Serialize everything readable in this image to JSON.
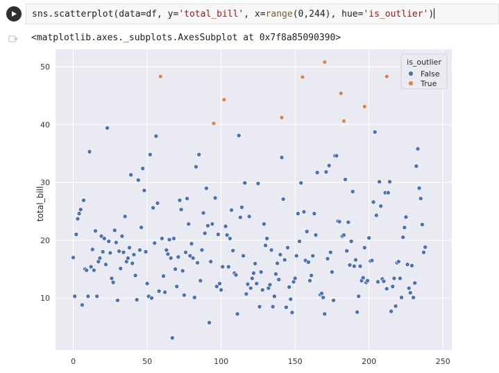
{
  "cell": {
    "code_prefix": "sns.scatterplot(data=df, y=",
    "code_y": "'total_bill'",
    "code_mid": ", x=",
    "code_range": "range",
    "code_range_args": "(0,244)",
    "code_hue_kw": ", hue=",
    "code_hue": "'is_outlier'",
    "code_suffix": ")",
    "output": "<matplotlib.axes._subplots.AxesSubplot at 0x7f8a85090390>"
  },
  "chart_data": {
    "type": "scatter",
    "xlabel": "",
    "ylabel": "total_bill",
    "xlim": [
      -12,
      256
    ],
    "ylim": [
      1,
      53
    ],
    "xticks": [
      0,
      50,
      100,
      150,
      200,
      250
    ],
    "yticks": [
      10,
      20,
      30,
      40,
      50
    ],
    "grid": true,
    "legend_position": "top-right",
    "legend_title": "is_outlier",
    "colors": {
      "False": "#4c72b0",
      "True": "#dd8452",
      "background": "#eaeaf2",
      "grid": "#ffffff"
    },
    "series": [
      {
        "name": "False",
        "color": "#4c72b0",
        "points": [
          [
            0,
            17.0
          ],
          [
            1,
            10.3
          ],
          [
            2,
            21.0
          ],
          [
            3,
            23.7
          ],
          [
            4,
            24.6
          ],
          [
            5,
            25.3
          ],
          [
            6,
            8.8
          ],
          [
            7,
            26.9
          ],
          [
            8,
            15.0
          ],
          [
            9,
            14.8
          ],
          [
            10,
            10.3
          ],
          [
            11,
            35.3
          ],
          [
            12,
            15.4
          ],
          [
            13,
            18.4
          ],
          [
            14,
            14.8
          ],
          [
            15,
            21.6
          ],
          [
            16,
            10.3
          ],
          [
            17,
            16.3
          ],
          [
            18,
            16.9
          ],
          [
            19,
            20.7
          ],
          [
            20,
            18.0
          ],
          [
            21,
            20.3
          ],
          [
            22,
            15.8
          ],
          [
            23,
            39.4
          ],
          [
            24,
            19.8
          ],
          [
            25,
            17.8
          ],
          [
            26,
            13.4
          ],
          [
            27,
            12.7
          ],
          [
            28,
            21.7
          ],
          [
            29,
            19.6
          ],
          [
            30,
            9.6
          ],
          [
            31,
            18.1
          ],
          [
            32,
            15.1
          ],
          [
            33,
            20.7
          ],
          [
            34,
            17.9
          ],
          [
            35,
            24.1
          ],
          [
            36,
            16.3
          ],
          [
            37,
            16.9
          ],
          [
            38,
            18.7
          ],
          [
            39,
            31.3
          ],
          [
            40,
            16.0
          ],
          [
            41,
            17.5
          ],
          [
            42,
            13.9
          ],
          [
            43,
            9.7
          ],
          [
            44,
            30.4
          ],
          [
            45,
            18.3
          ],
          [
            46,
            22.2
          ],
          [
            47,
            32.4
          ],
          [
            48,
            28.6
          ],
          [
            49,
            18.0
          ],
          [
            50,
            12.5
          ],
          [
            51,
            10.3
          ],
          [
            52,
            34.8
          ],
          [
            53,
            10.0
          ],
          [
            54,
            25.6
          ],
          [
            55,
            19.5
          ],
          [
            56,
            38.0
          ],
          [
            57,
            26.4
          ],
          [
            58,
            11.2
          ],
          [
            60,
            20.3
          ],
          [
            61,
            13.8
          ],
          [
            62,
            11.0
          ],
          [
            63,
            18.3
          ],
          [
            64,
            17.6
          ],
          [
            65,
            20.1
          ],
          [
            66,
            16.9
          ],
          [
            67,
            3.1
          ],
          [
            68,
            20.3
          ],
          [
            69,
            15.0
          ],
          [
            70,
            12.0
          ],
          [
            71,
            17.1
          ],
          [
            72,
            26.9
          ],
          [
            73,
            25.3
          ],
          [
            74,
            14.7
          ],
          [
            75,
            10.5
          ],
          [
            76,
            17.9
          ],
          [
            77,
            27.2
          ],
          [
            78,
            22.8
          ],
          [
            79,
            17.3
          ],
          [
            80,
            19.4
          ],
          [
            81,
            16.9
          ],
          [
            82,
            10.1
          ],
          [
            83,
            32.7
          ],
          [
            84,
            16.1
          ],
          [
            85,
            34.8
          ],
          [
            86,
            13.0
          ],
          [
            87,
            18.3
          ],
          [
            88,
            24.7
          ],
          [
            89,
            21.2
          ],
          [
            90,
            28.97
          ],
          [
            91,
            22.5
          ],
          [
            92,
            5.75
          ],
          [
            93,
            16.3
          ],
          [
            94,
            22.8
          ],
          [
            96,
            27.3
          ],
          [
            97,
            12.0
          ],
          [
            98,
            21.0
          ],
          [
            99,
            12.5
          ],
          [
            100,
            11.4
          ],
          [
            101,
            15.4
          ],
          [
            103,
            22.4
          ],
          [
            104,
            20.9
          ],
          [
            105,
            15.4
          ],
          [
            106,
            20.3
          ],
          [
            107,
            25.2
          ],
          [
            108,
            18.2
          ],
          [
            109,
            14.3
          ],
          [
            110,
            14.0
          ],
          [
            111,
            7.25
          ],
          [
            112,
            38.1
          ],
          [
            113,
            23.95
          ],
          [
            114,
            25.7
          ],
          [
            115,
            17.3
          ],
          [
            116,
            29.9
          ],
          [
            117,
            10.7
          ],
          [
            118,
            12.4
          ],
          [
            119,
            24.1
          ],
          [
            120,
            11.7
          ],
          [
            121,
            13.4
          ],
          [
            122,
            14.3
          ],
          [
            123,
            15.95
          ],
          [
            124,
            12.5
          ],
          [
            125,
            29.8
          ],
          [
            126,
            8.5
          ],
          [
            127,
            14.5
          ],
          [
            128,
            11.4
          ],
          [
            129,
            22.8
          ],
          [
            130,
            19.1
          ],
          [
            131,
            20.3
          ],
          [
            132,
            11.7
          ],
          [
            133,
            12.3
          ],
          [
            134,
            18.3
          ],
          [
            135,
            8.5
          ],
          [
            136,
            10.3
          ],
          [
            137,
            14.15
          ],
          [
            138,
            16.0
          ],
          [
            139,
            13.2
          ],
          [
            140,
            17.5
          ],
          [
            141,
            34.3
          ],
          [
            142,
            27.1
          ],
          [
            143,
            16.6
          ],
          [
            144,
            8.4
          ],
          [
            145,
            18.7
          ],
          [
            146,
            11.9
          ],
          [
            147,
            9.8
          ],
          [
            148,
            7.5
          ],
          [
            149,
            12.8
          ],
          [
            150,
            13.4
          ],
          [
            151,
            17.3
          ],
          [
            152,
            24.6
          ],
          [
            153,
            19.8
          ],
          [
            154,
            29.9
          ],
          [
            156,
            24.9
          ],
          [
            157,
            16.5
          ],
          [
            158,
            21.5
          ],
          [
            159,
            16.2
          ],
          [
            160,
            13.0
          ],
          [
            161,
            13.9
          ],
          [
            162,
            17.3
          ],
          [
            163,
            24.6
          ],
          [
            164,
            20.9
          ],
          [
            165,
            31.7
          ],
          [
            167,
            10.6
          ],
          [
            168,
            10.8
          ],
          [
            169,
            10.1
          ],
          [
            170,
            7.25
          ],
          [
            171,
            31.8
          ],
          [
            172,
            16.8
          ],
          [
            173,
            32.9
          ],
          [
            174,
            17.9
          ],
          [
            175,
            14.5
          ],
          [
            176,
            9.6
          ],
          [
            177,
            34.6
          ],
          [
            178,
            34.6
          ],
          [
            179,
            23.3
          ],
          [
            180,
            23.2
          ],
          [
            182,
            20.7
          ],
          [
            183,
            20.9
          ],
          [
            184,
            30.5
          ],
          [
            185,
            18.15
          ],
          [
            186,
            23.1
          ],
          [
            187,
            15.7
          ],
          [
            188,
            19.8
          ],
          [
            189,
            28.4
          ],
          [
            190,
            15.5
          ],
          [
            191,
            16.6
          ],
          [
            192,
            7.56
          ],
          [
            193,
            10.3
          ],
          [
            194,
            15.5
          ],
          [
            195,
            13.0
          ],
          [
            196,
            13.5
          ],
          [
            197,
            18.7
          ],
          [
            198,
            12.7
          ],
          [
            199,
            13.0
          ],
          [
            200,
            20.4
          ],
          [
            201,
            16.4
          ],
          [
            202,
            16.5
          ],
          [
            203,
            26.6
          ],
          [
            204,
            38.7
          ],
          [
            205,
            24.3
          ],
          [
            206,
            12.8
          ],
          [
            207,
            30.1
          ],
          [
            208,
            25.9
          ],
          [
            209,
            13.3
          ],
          [
            210,
            12.9
          ],
          [
            211,
            28.2
          ],
          [
            212,
            11.6
          ],
          [
            213,
            28.2
          ],
          [
            214,
            30.1
          ],
          [
            215,
            7.7
          ],
          [
            216,
            12.0
          ],
          [
            217,
            13.4
          ],
          [
            218,
            8.6
          ],
          [
            219,
            16.1
          ],
          [
            220,
            16.3
          ],
          [
            221,
            13.4
          ],
          [
            222,
            10.1
          ],
          [
            223,
            20.5
          ],
          [
            224,
            22.2
          ],
          [
            225,
            24.0
          ],
          [
            226,
            15.8
          ],
          [
            227,
            11.7
          ],
          [
            228,
            10.9
          ],
          [
            229,
            15.6
          ],
          [
            230,
            10.1
          ],
          [
            231,
            12.6
          ],
          [
            232,
            32.8
          ],
          [
            233,
            35.8
          ],
          [
            234,
            29.0
          ],
          [
            235,
            27.2
          ],
          [
            236,
            22.7
          ],
          [
            237,
            17.9
          ],
          [
            238,
            18.8
          ]
        ]
      },
      {
        "name": "True",
        "color": "#dd8452",
        "points": [
          [
            59,
            48.3
          ],
          [
            95,
            40.2
          ],
          [
            102,
            44.3
          ],
          [
            141,
            41.2
          ],
          [
            155,
            48.2
          ],
          [
            170,
            50.8
          ],
          [
            181,
            45.4
          ],
          [
            183,
            40.6
          ],
          [
            197,
            43.1
          ],
          [
            212,
            48.3
          ]
        ]
      }
    ]
  }
}
